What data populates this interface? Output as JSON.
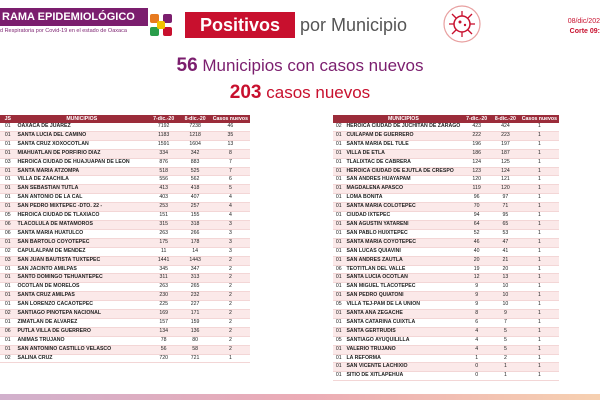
{
  "header": {
    "brand": "RAMA EPIDEMIOLÓGICO",
    "brand_sub": "d Respiratoria por Covid-19 en el estado de Oaxaca",
    "title_highlight": "Positivos",
    "title_rest": "por Municipio",
    "date": "08/dic/202",
    "corte": "Corte 09:"
  },
  "summary": {
    "municipios_num": "56",
    "municipios_text": "Municipios con casos nuevos",
    "casos_num": "203",
    "casos_text": "casos nuevos"
  },
  "colors": {
    "brand": "#7b1e6e",
    "accent": "#c8102e",
    "header_row": "#9b2c3a"
  },
  "left_table": {
    "headers": [
      "JS",
      "MUNICIPIOS",
      "7-dic.-20",
      "8-dic.-20",
      "Casos nuevos"
    ],
    "rows": [
      [
        "01",
        "OAXACA DE JUAREZ",
        "7192",
        "7238",
        "46"
      ],
      [
        "01",
        "SANTA LUCIA DEL CAMINO",
        "1183",
        "1218",
        "35"
      ],
      [
        "01",
        "SANTA CRUZ XOXOCOTLAN",
        "1591",
        "1604",
        "13"
      ],
      [
        "01",
        "MIAHUATLAN DE PORFIRIO DIAZ",
        "334",
        "342",
        "8"
      ],
      [
        "03",
        "HEROICA CIUDAD DE HUAJUAPAN DE LEON",
        "876",
        "883",
        "7"
      ],
      [
        "01",
        "SANTA MARIA ATZOMPA",
        "518",
        "525",
        "7"
      ],
      [
        "01",
        "VILLA DE ZAACHILA",
        "556",
        "562",
        "6"
      ],
      [
        "01",
        "SAN SEBASTIAN TUTLA",
        "413",
        "418",
        "5"
      ],
      [
        "01",
        "SAN ANTONIO DE LA CAL",
        "403",
        "407",
        "4"
      ],
      [
        "01",
        "SAN PEDRO MIXTEPEC -DTO. 22 -",
        "253",
        "257",
        "4"
      ],
      [
        "05",
        "HEROICA CIUDAD DE TLAXIACO",
        "151",
        "155",
        "4"
      ],
      [
        "06",
        "TLACOLULA DE MATAMOROS",
        "315",
        "318",
        "3"
      ],
      [
        "06",
        "SANTA MARIA HUATULCO",
        "263",
        "266",
        "3"
      ],
      [
        "01",
        "SAN BARTOLO COYOTEPEC",
        "175",
        "178",
        "3"
      ],
      [
        "02",
        "CAPULALPAM DE MENDEZ",
        "11",
        "14",
        "3"
      ],
      [
        "03",
        "SAN JUAN BAUTISTA TUXTEPEC",
        "1441",
        "1443",
        "2"
      ],
      [
        "01",
        "SAN JACINTO AMILPAS",
        "345",
        "347",
        "2"
      ],
      [
        "01",
        "SANTO DOMINGO TEHUANTEPEC",
        "311",
        "313",
        "2"
      ],
      [
        "01",
        "OCOTLAN DE MORELOS",
        "263",
        "265",
        "2"
      ],
      [
        "01",
        "SANTA CRUZ AMILPAS",
        "230",
        "232",
        "2"
      ],
      [
        "01",
        "SAN LORENZO CACAOTEPEC",
        "225",
        "227",
        "2"
      ],
      [
        "02",
        "SANTIAGO PINOTEPA NACIONAL",
        "169",
        "171",
        "2"
      ],
      [
        "01",
        "ZIMATLAN DE ALVAREZ",
        "157",
        "159",
        "2"
      ],
      [
        "06",
        "PUTLA VILLA DE GUERRERO",
        "134",
        "136",
        "2"
      ],
      [
        "01",
        "ANIMAS TRUJANO",
        "78",
        "80",
        "2"
      ],
      [
        "01",
        "SAN ANTONINO CASTILLO VELASCO",
        "56",
        "58",
        "2"
      ],
      [
        "02",
        "SALINA CRUZ",
        "720",
        "721",
        "1"
      ]
    ]
  },
  "right_table": {
    "headers": [
      "",
      "MUNICIPIOS",
      "7-dic.-20",
      "8-dic.-20",
      "Casos nuevos"
    ],
    "rows": [
      [
        "02",
        "HEROICA CIUDAD DE JUCHITAN DE ZARAGO",
        "423",
        "424",
        "1"
      ],
      [
        "01",
        "CUILAPAM DE GUERRERO",
        "222",
        "223",
        "1"
      ],
      [
        "01",
        "SANTA MARIA DEL TULE",
        "196",
        "197",
        "1"
      ],
      [
        "01",
        "VILLA DE ETLA",
        "186",
        "187",
        "1"
      ],
      [
        "01",
        "TLALIXTAC DE CABRERA",
        "124",
        "125",
        "1"
      ],
      [
        "01",
        "HEROICA CIUDAD DE EJUTLA DE CRESPO",
        "123",
        "124",
        "1"
      ],
      [
        "01",
        "SAN ANDRES HUAYAPAM",
        "120",
        "121",
        "1"
      ],
      [
        "01",
        "MAGDALENA APASCO",
        "119",
        "120",
        "1"
      ],
      [
        "01",
        "LOMA BONITA",
        "96",
        "97",
        "1"
      ],
      [
        "01",
        "SANTA MARIA COLOTEPEC",
        "70",
        "71",
        "1"
      ],
      [
        "01",
        "CIUDAD IXTEPEC",
        "94",
        "95",
        "1"
      ],
      [
        "01",
        "SAN AGUSTIN YATARENI",
        "64",
        "65",
        "1"
      ],
      [
        "01",
        "SAN PABLO HUIXTEPEC",
        "52",
        "53",
        "1"
      ],
      [
        "01",
        "SANTA MARIA COYOTEPEC",
        "46",
        "47",
        "1"
      ],
      [
        "01",
        "SAN LUCAS QUIAVINI",
        "40",
        "41",
        "1"
      ],
      [
        "01",
        "SAN ANDRES ZAUTLA",
        "20",
        "21",
        "1"
      ],
      [
        "06",
        "TEOTITLAN DEL VALLE",
        "19",
        "20",
        "1"
      ],
      [
        "01",
        "SANTA LUCIA OCOTLAN",
        "12",
        "13",
        "1"
      ],
      [
        "01",
        "SAN MIGUEL TLACOTEPEC",
        "9",
        "10",
        "1"
      ],
      [
        "01",
        "SAN PEDRO QUIATONI",
        "9",
        "10",
        "1"
      ],
      [
        "05",
        "VILLA TEJ-PAM DE LA UNION",
        "9",
        "10",
        "1"
      ],
      [
        "01",
        "SANTA ANA ZEGACHE",
        "8",
        "9",
        "1"
      ],
      [
        "01",
        "SANTA CATARINA CUIXTLA",
        "6",
        "7",
        "1"
      ],
      [
        "01",
        "SANTA GERTRUDIS",
        "4",
        "5",
        "1"
      ],
      [
        "05",
        "SANTIAGO AYUQUILILLA",
        "4",
        "5",
        "1"
      ],
      [
        "01",
        "VALERIO TRUJANO",
        "4",
        "5",
        "1"
      ],
      [
        "01",
        "LA REFORMA",
        "1",
        "2",
        "1"
      ],
      [
        "01",
        "SAN VICENTE LACHIXIO",
        "0",
        "1",
        "1"
      ],
      [
        "01",
        "SITIO DE XITLAPEHUA",
        "0",
        "1",
        "1"
      ]
    ]
  }
}
